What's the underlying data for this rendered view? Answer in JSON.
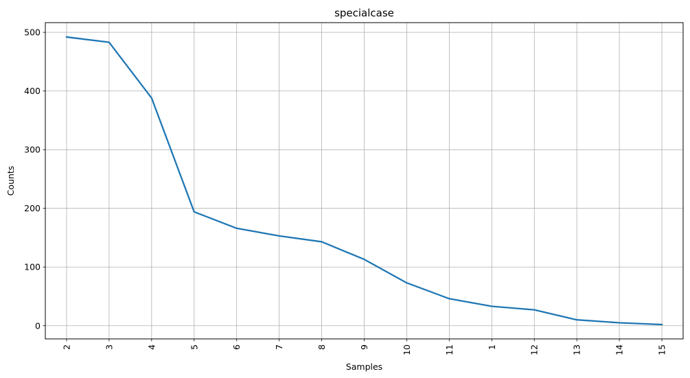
{
  "chart_data": {
    "type": "line",
    "title": "specialcase",
    "xlabel": "Samples",
    "ylabel": "Counts",
    "categories": [
      "2",
      "3",
      "4",
      "5",
      "6",
      "7",
      "8",
      "9",
      "10",
      "11",
      "1",
      "12",
      "13",
      "14",
      "15"
    ],
    "values": [
      492,
      483,
      388,
      194,
      166,
      153,
      143,
      113,
      73,
      46,
      33,
      27,
      10,
      5,
      2
    ],
    "ylim": [
      -22.5,
      516.5
    ],
    "yticks": [
      0,
      100,
      200,
      300,
      400,
      500
    ],
    "xtick_rotation": 90,
    "grid": true,
    "line_color": "#1f77b4",
    "grid_color": "#b0b0b0"
  }
}
